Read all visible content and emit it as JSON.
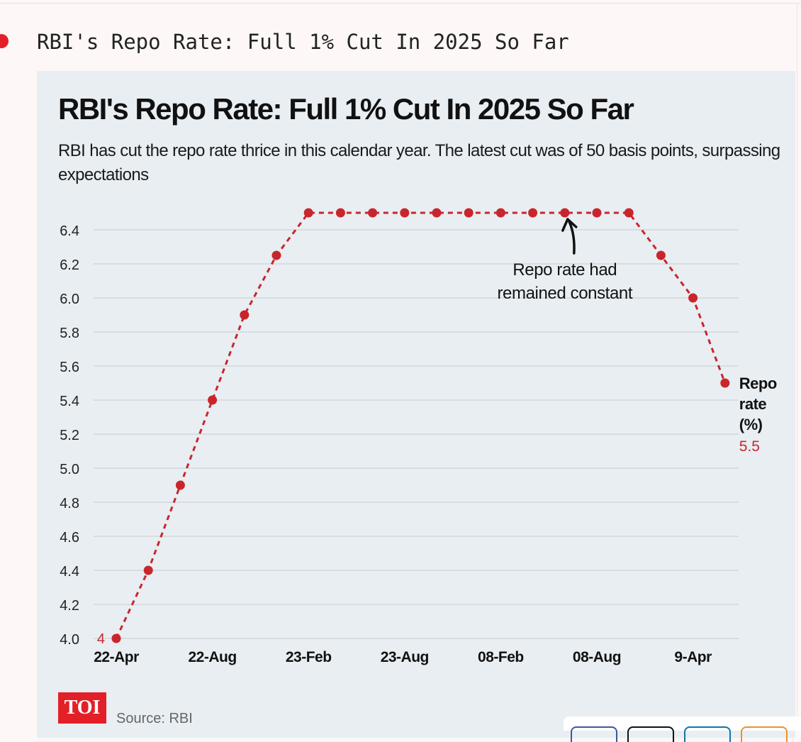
{
  "page": {
    "heading": "RBI's Repo Rate: Full 1% Cut In 2025 So Far"
  },
  "chart_data": {
    "type": "line",
    "title": "RBI's Repo Rate: Full 1% Cut In 2025 So Far",
    "subtitle": "RBI has cut the repo rate thrice in this calendar year. The latest cut was of 50 basis points, surpassing expectations",
    "xlabel": "",
    "ylabel": "",
    "ylim": [
      4.0,
      6.5
    ],
    "y_ticks": [
      "4.0",
      "4.2",
      "4.4",
      "4.6",
      "4.8",
      "5.0",
      "5.2",
      "5.4",
      "5.6",
      "5.8",
      "6.0",
      "6.2",
      "6.4"
    ],
    "x_tick_labels": [
      "22-Apr",
      "22-Aug",
      "23-Feb",
      "23-Aug",
      "08-Feb",
      "08-Aug",
      "9-Apr"
    ],
    "grid": "horizontal",
    "series": [
      {
        "name": "Repo rate (%)",
        "color": "#c9252c",
        "style": "dashed with markers",
        "values": [
          4.0,
          4.4,
          4.9,
          5.4,
          5.9,
          6.25,
          6.5,
          6.5,
          6.5,
          6.5,
          6.5,
          6.5,
          6.5,
          6.5,
          6.5,
          6.5,
          6.5,
          6.25,
          6.0,
          5.5
        ]
      }
    ],
    "start_label": "4",
    "end_label": {
      "name_lines": [
        "Repo",
        "rate",
        "(%)"
      ],
      "value": "5.5"
    },
    "annotation": {
      "lines": [
        "Repo rate had",
        "remained constant"
      ]
    }
  },
  "footer": {
    "logo": "TOI",
    "source": "Source: RBI"
  },
  "colors": {
    "accent": "#e32027",
    "series": "#c9252c",
    "card_background": "#e8eef2"
  }
}
